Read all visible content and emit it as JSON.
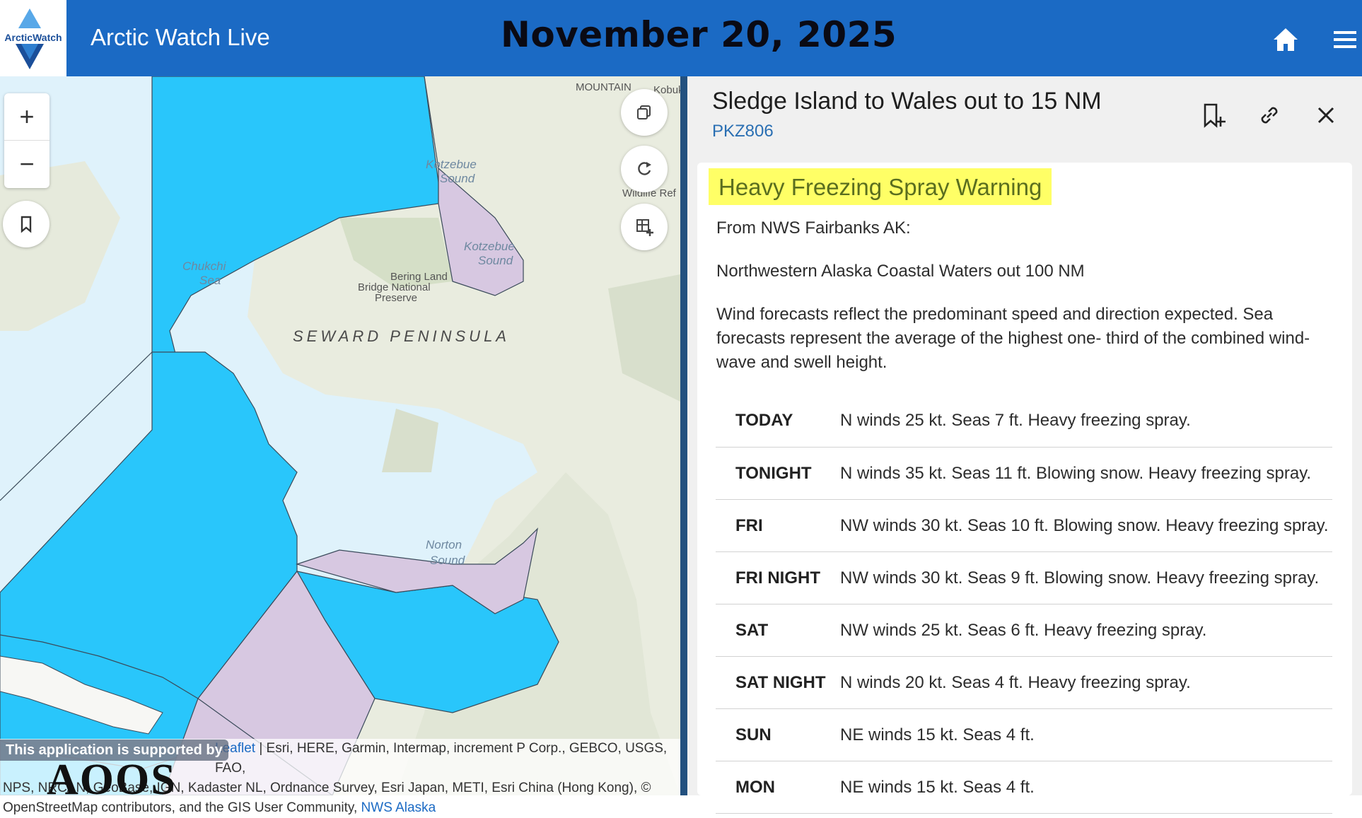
{
  "header": {
    "logo_text": "ArcticWatch",
    "app_title": "Arctic Watch Live",
    "date": "November 20, 2025",
    "home_icon": "home-icon",
    "menu_icon": "menu-icon"
  },
  "map": {
    "zoom_in": "+",
    "zoom_out": "−",
    "labels": {
      "mountain": "MOUNTAIN",
      "kotzebue_sound_1a": "Kotzebue",
      "kotzebue_sound_1b": "Sound",
      "kotzebue_sound_2a": "Kotzebue",
      "kotzebue_sound_2b": "Sound",
      "chukchi_a": "Chukchi",
      "chukchi_b": "Sea",
      "bering_1": "Bering Land",
      "bering_2": "Bridge National",
      "bering_3": "Preserve",
      "seward": "SEWARD PENINSULA",
      "norton_a": "Norton",
      "norton_b": "Sound",
      "wildlife": "Wildlife Ref",
      "kobuk": "Kobuk"
    },
    "attribution": {
      "line1": "Esri, HERE, Garmin, Intermap, increment P Corp., GEBCO, USGS, FAO,",
      "line2": "NPS, NRCAN, GeoBase, IGN, Kadaster NL, Ordnance Survey, Esri Japan, METI, Esri China (Hong Kong), ©",
      "line3": "OpenStreetMap contributors, and the GIS User Community,",
      "nws_link": "NWS Alaska",
      "leaflet": "Leaflet"
    },
    "edu_badge": "This application is supported by",
    "aoos": "AOOS"
  },
  "panel": {
    "title": "Sledge Island to Wales out to 15 NM",
    "code": "PKZ806",
    "warning": "Heavy Freezing Spray Warning",
    "from": "From NWS Fairbanks AK:",
    "area": "Northwestern Alaska Coastal Waters out 100 NM",
    "description": "Wind forecasts reflect the predominant speed and direction expected. Sea forecasts represent the average of the highest one- third of the combined wind-wave and swell height.",
    "forecast": [
      {
        "period": "TODAY",
        "text": "N winds 25 kt. Seas 7 ft. Heavy freezing spray."
      },
      {
        "period": "TONIGHT",
        "text": "N winds 35 kt. Seas 11 ft. Blowing snow. Heavy freezing spray."
      },
      {
        "period": "FRI",
        "text": "NW winds 30 kt. Seas 10 ft. Blowing snow. Heavy freezing spray."
      },
      {
        "period": "FRI NIGHT",
        "text": "NW winds 30 kt. Seas 9 ft. Blowing snow. Heavy freezing spray."
      },
      {
        "period": "SAT",
        "text": "NW winds 25 kt. Seas 6 ft. Heavy freezing spray."
      },
      {
        "period": "SAT NIGHT",
        "text": "N winds 20 kt. Seas 4 ft. Heavy freezing spray."
      },
      {
        "period": "SUN",
        "text": "NE winds 15 kt. Seas 4 ft."
      },
      {
        "period": "MON",
        "text": "NE winds 15 kt. Seas 4 ft."
      }
    ]
  },
  "colors": {
    "header_blue": "#1b6ac4",
    "zone_blue": "#29c6fb",
    "zone_purple": "#d7c8e1",
    "warning_highlight": "#ffff66"
  }
}
